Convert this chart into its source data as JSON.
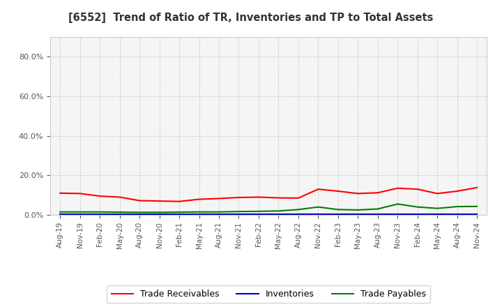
{
  "title": "[6552]  Trend of Ratio of TR, Inventories and TP to Total Assets",
  "x_labels": [
    "Aug-19",
    "Nov-19",
    "Feb-20",
    "May-20",
    "Aug-20",
    "Nov-20",
    "Feb-21",
    "May-21",
    "Aug-21",
    "Nov-21",
    "Feb-22",
    "May-22",
    "Aug-22",
    "Nov-22",
    "Feb-23",
    "May-23",
    "Aug-23",
    "Nov-23",
    "Feb-24",
    "May-24",
    "Aug-24",
    "Nov-24"
  ],
  "trade_receivables": [
    0.11,
    0.108,
    0.095,
    0.09,
    0.072,
    0.07,
    0.068,
    0.079,
    0.083,
    0.088,
    0.09,
    0.086,
    0.085,
    0.13,
    0.12,
    0.108,
    0.112,
    0.135,
    0.13,
    0.108,
    0.12,
    0.138
  ],
  "inventories": [
    0.002,
    0.002,
    0.002,
    0.002,
    0.002,
    0.002,
    0.002,
    0.002,
    0.002,
    0.002,
    0.002,
    0.002,
    0.002,
    0.002,
    0.002,
    0.002,
    0.002,
    0.002,
    0.002,
    0.002,
    0.002,
    0.002
  ],
  "trade_payables": [
    0.015,
    0.015,
    0.015,
    0.014,
    0.013,
    0.013,
    0.014,
    0.015,
    0.015,
    0.017,
    0.018,
    0.02,
    0.027,
    0.04,
    0.027,
    0.025,
    0.03,
    0.055,
    0.04,
    0.033,
    0.042,
    0.043
  ],
  "tr_color": "#FF0000",
  "inv_color": "#0000CC",
  "tp_color": "#008000",
  "ylim": [
    0,
    0.9
  ],
  "yticks": [
    0.0,
    0.2,
    0.4,
    0.6,
    0.8
  ],
  "background_color": "#FFFFFF",
  "plot_bg_color": "#F5F5F5",
  "grid_color": "#BBBBBB",
  "title_color": "#333333",
  "legend_labels": [
    "Trade Receivables",
    "Inventories",
    "Trade Payables"
  ]
}
